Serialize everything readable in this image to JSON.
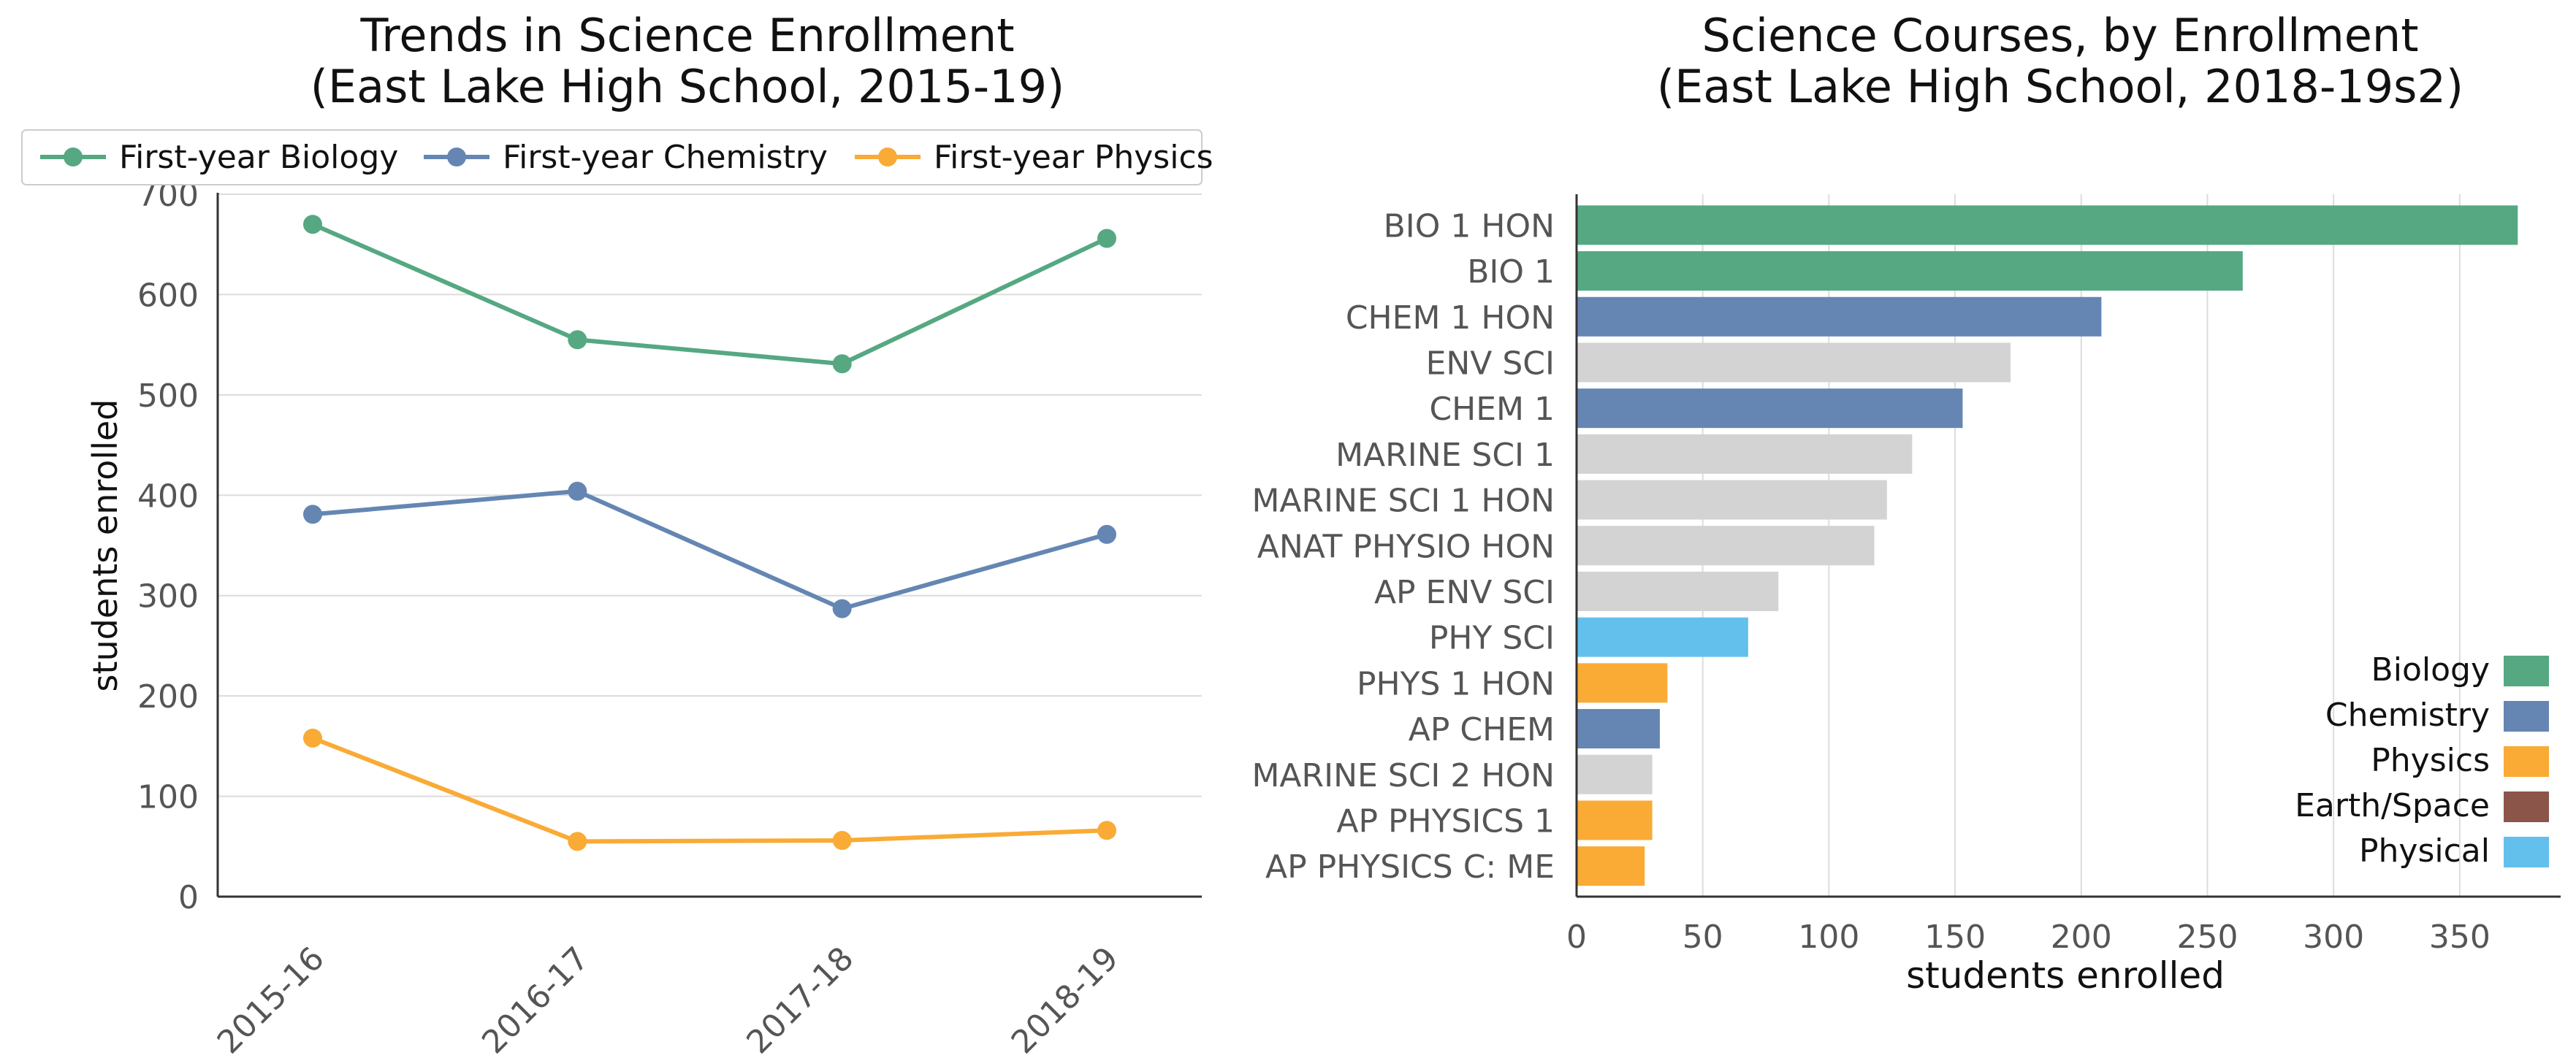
{
  "chart_data": [
    {
      "type": "line",
      "title": "Trends in Science Enrollment\n(East Lake High School, 2015-19)",
      "xlabel": "",
      "ylabel": "students enrolled",
      "categories": [
        "2015-16",
        "2016-17",
        "2017-18",
        "2018-19"
      ],
      "ylim": [
        0,
        700
      ],
      "yticks": [
        "0",
        "100",
        "200",
        "300",
        "400",
        "500",
        "600",
        "700"
      ],
      "grid": "horizontal",
      "legend_placement": "top",
      "series": [
        {
          "name": "First-year Biology",
          "color": "#55a882",
          "values": [
            670,
            555,
            531,
            656
          ]
        },
        {
          "name": "First-year Chemistry",
          "color": "#6586b3",
          "values": [
            381,
            404,
            287,
            361
          ]
        },
        {
          "name": "First-year Physics",
          "color": "#f9ab36",
          "values": [
            158,
            55,
            56,
            66
          ]
        }
      ]
    },
    {
      "type": "bar",
      "orientation": "horizontal",
      "title": "Science Courses, by Enrollment\n(East Lake High School, 2018-19s2)",
      "xlabel": "students enrolled",
      "ylabel": "",
      "xlim": [
        0,
        390
      ],
      "xticks": [
        "0",
        "50",
        "100",
        "150",
        "200",
        "250",
        "300",
        "350"
      ],
      "grid": "vertical",
      "legend_placement": "lower-right",
      "categories": [
        "BIO 1 HON",
        "BIO 1",
        "CHEM 1 HON",
        "ENV SCI",
        "CHEM 1",
        "MARINE SCI 1",
        "MARINE SCI 1 HON",
        "ANAT PHYSIO HON",
        "AP ENV SCI",
        "PHY SCI",
        "PHYS 1 HON",
        "AP CHEM",
        "MARINE SCI 2 HON",
        "AP PHYSICS 1",
        "AP PHYSICS C: ME"
      ],
      "values": [
        373,
        264,
        208,
        172,
        153,
        133,
        123,
        118,
        80,
        68,
        36,
        33,
        30,
        30,
        27
      ],
      "bar_groups": [
        "Biology",
        "Biology",
        "Chemistry",
        "Other",
        "Chemistry",
        "Other",
        "Other",
        "Other",
        "Other",
        "Physical",
        "Physics",
        "Chemistry",
        "Other",
        "Physics",
        "Physics"
      ],
      "group_colors": {
        "Biology": "#55a882",
        "Chemistry": "#6586b3",
        "Physics": "#f9ab36",
        "Earth/Space": "#8c5549",
        "Physical": "#63bfec",
        "Other": "#d3d3d3"
      },
      "legend": [
        {
          "label": "Biology",
          "color": "#55a882"
        },
        {
          "label": "Chemistry",
          "color": "#6586b3"
        },
        {
          "label": "Physics",
          "color": "#f9ab36"
        },
        {
          "label": "Earth/Space",
          "color": "#8c5549"
        },
        {
          "label": "Physical",
          "color": "#63bfec"
        }
      ]
    }
  ]
}
